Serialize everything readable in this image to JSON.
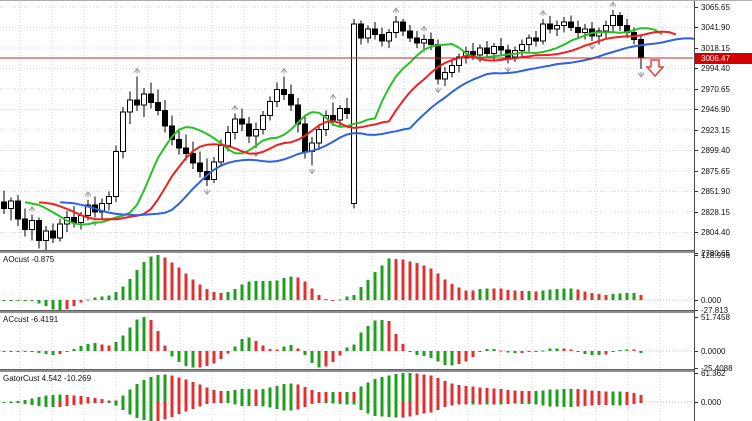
{
  "colors": {
    "background": "#ffffff",
    "grid": "#d6d6d6",
    "candle_up_fill": "#ffffff",
    "candle_down_fill": "#000000",
    "candle_stroke": "#000000",
    "alligator_lips_green": "#27c127",
    "alligator_teeth_red": "#ef2020",
    "alligator_jaw_blue": "#2f62e0",
    "histogram_up_green": "#1f9e1f",
    "histogram_down_red": "#e03030",
    "price_line_red": "#d02020",
    "price_badge_red": "#d40000",
    "fractal_gray": "#9a9a9a",
    "sell_arrow_red": "#e04040",
    "separator_gray": "#8e8e8e",
    "axis_line": "#4a4a4a"
  },
  "axis": {
    "price_badge_value": "3006.47"
  },
  "chart_data": [
    {
      "type": "candlestick",
      "name": "price-pane",
      "ylim": [
        2784.1,
        3072.6
      ],
      "y_tick_labels": [
        "3065.65",
        "3041.90",
        "3018.15",
        "2994.40",
        "2970.65",
        "2946.90",
        "2923.15",
        "2899.40",
        "2875.65",
        "2851.90",
        "2828.15",
        "2804.40",
        "2780.65"
      ],
      "price_line": {
        "value": 3006.47,
        "label": "3006.47"
      },
      "x0": 4,
      "dx": 7,
      "ohlc": [
        [
          2840,
          2853,
          2826,
          2832
        ],
        [
          2832,
          2845,
          2818,
          2841
        ],
        [
          2841,
          2848,
          2812,
          2820
        ],
        [
          2820,
          2832,
          2800,
          2808
        ],
        [
          2808,
          2825,
          2795,
          2818
        ],
        [
          2818,
          2822,
          2786,
          2795
        ],
        [
          2795,
          2812,
          2783,
          2806
        ],
        [
          2806,
          2815,
          2792,
          2798
        ],
        [
          2798,
          2820,
          2794,
          2814
        ],
        [
          2814,
          2829,
          2805,
          2822
        ],
        [
          2822,
          2835,
          2810,
          2816
        ],
        [
          2816,
          2828,
          2808,
          2824
        ],
        [
          2824,
          2842,
          2818,
          2836
        ],
        [
          2836,
          2846,
          2822,
          2828
        ],
        [
          2828,
          2844,
          2820,
          2838
        ],
        [
          2838,
          2852,
          2830,
          2846
        ],
        [
          2846,
          2905,
          2840,
          2898
        ],
        [
          2898,
          2950,
          2890,
          2944
        ],
        [
          2944,
          2968,
          2930,
          2958
        ],
        [
          2958,
          2985,
          2945,
          2952
        ],
        [
          2952,
          2972,
          2938,
          2965
        ],
        [
          2965,
          2978,
          2948,
          2955
        ],
        [
          2955,
          2970,
          2940,
          2946
        ],
        [
          2946,
          2958,
          2920,
          2928
        ],
        [
          2928,
          2940,
          2905,
          2912
        ],
        [
          2912,
          2925,
          2895,
          2902
        ],
        [
          2902,
          2918,
          2888,
          2896
        ],
        [
          2896,
          2910,
          2878,
          2885
        ],
        [
          2885,
          2898,
          2868,
          2875
        ],
        [
          2875,
          2890,
          2858,
          2866
        ],
        [
          2866,
          2892,
          2862,
          2886
        ],
        [
          2886,
          2912,
          2880,
          2905
        ],
        [
          2905,
          2928,
          2898,
          2920
        ],
        [
          2920,
          2942,
          2912,
          2936
        ],
        [
          2936,
          2948,
          2922,
          2930
        ],
        [
          2930,
          2938,
          2908,
          2916
        ],
        [
          2916,
          2932,
          2902,
          2924
        ],
        [
          2924,
          2945,
          2918,
          2940
        ],
        [
          2940,
          2962,
          2934,
          2956
        ],
        [
          2956,
          2978,
          2950,
          2970
        ],
        [
          2970,
          2985,
          2958,
          2964
        ],
        [
          2964,
          2976,
          2945,
          2952
        ],
        [
          2952,
          2960,
          2920,
          2930
        ],
        [
          2930,
          2940,
          2890,
          2898
        ],
        [
          2898,
          2915,
          2882,
          2908
        ],
        [
          2908,
          2930,
          2900,
          2924
        ],
        [
          2924,
          2946,
          2916,
          2940
        ],
        [
          2940,
          2955,
          2928,
          2935
        ],
        [
          2935,
          2952,
          2926,
          2948
        ],
        [
          2948,
          2960,
          2936,
          2942
        ],
        [
          2838,
          3052,
          2832,
          3046
        ],
        [
          3046,
          3050,
          3022,
          3030
        ],
        [
          3030,
          3044,
          3024,
          3040
        ],
        [
          3040,
          3048,
          3028,
          3034
        ],
        [
          3034,
          3042,
          3020,
          3026
        ],
        [
          3026,
          3040,
          3018,
          3036
        ],
        [
          3036,
          3055,
          3030,
          3048
        ],
        [
          3048,
          3052,
          3032,
          3038
        ],
        [
          3038,
          3045,
          3025,
          3030
        ],
        [
          3030,
          3038,
          3018,
          3024
        ],
        [
          3024,
          3034,
          3014,
          3028
        ],
        [
          3028,
          3036,
          3016,
          3022
        ],
        [
          3022,
          3028,
          2976,
          2982
        ],
        [
          2982,
          2996,
          2974,
          2990
        ],
        [
          2990,
          3004,
          2984,
          2998
        ],
        [
          2998,
          3012,
          2990,
          3008
        ],
        [
          3008,
          3020,
          3000,
          3014
        ],
        [
          3014,
          3024,
          3004,
          3010
        ],
        [
          3010,
          3022,
          3002,
          3018
        ],
        [
          3018,
          3026,
          3006,
          3012
        ],
        [
          3012,
          3024,
          3004,
          3020
        ],
        [
          3020,
          3030,
          3010,
          3016
        ],
        [
          3016,
          3022,
          3000,
          3008
        ],
        [
          3008,
          3020,
          3002,
          3015
        ],
        [
          3015,
          3028,
          3008,
          3022
        ],
        [
          3022,
          3034,
          3014,
          3030
        ],
        [
          3030,
          3038,
          3020,
          3026
        ],
        [
          3026,
          3052,
          3022,
          3046
        ],
        [
          3046,
          3055,
          3035,
          3040
        ],
        [
          3040,
          3050,
          3032,
          3044
        ],
        [
          3044,
          3054,
          3036,
          3048
        ],
        [
          3048,
          3056,
          3038,
          3042
        ],
        [
          3042,
          3050,
          3030,
          3036
        ],
        [
          3036,
          3046,
          3028,
          3040
        ],
        [
          3040,
          3048,
          3026,
          3032
        ],
        [
          3032,
          3042,
          3022,
          3038
        ],
        [
          3038,
          3050,
          3030,
          3044
        ],
        [
          3044,
          3062,
          3036,
          3056
        ],
        [
          3056,
          3060,
          3038,
          3044
        ],
        [
          3044,
          3052,
          3030,
          3036
        ],
        [
          3036,
          3042,
          3022,
          3028
        ],
        [
          3028,
          3034,
          2994,
          3006.47
        ]
      ],
      "overlays": [
        {
          "name": "alligator-lips",
          "method": "smma_median",
          "period": 5,
          "shift": 3,
          "color_key": "alligator_lips_green"
        },
        {
          "name": "alligator-teeth",
          "method": "smma_median",
          "period": 8,
          "shift": 5,
          "color_key": "alligator_teeth_red"
        },
        {
          "name": "alligator-jaw",
          "method": "smma_median",
          "period": 13,
          "shift": 8,
          "color_key": "alligator_jaw_blue"
        }
      ],
      "fractals_up": [
        4,
        12,
        19,
        33,
        40,
        47,
        56,
        60,
        77,
        87
      ],
      "fractals_down": [
        5,
        13,
        29,
        36,
        44,
        62,
        72,
        84,
        91
      ],
      "sell_marker": {
        "x_index": 93,
        "price": 2995
      }
    },
    {
      "type": "bar",
      "name": "awesome-oscillator-pane",
      "label": "AOcust -0.875",
      "derived_from": "ohlc",
      "formula": "AO = SMA(median,5) - SMA(median,34)",
      "ylim": [
        -28,
        135
      ],
      "pos_max": 128.956,
      "neg_min": -27.813,
      "ticks": [
        "128.956",
        "0.000",
        "-27.813"
      ]
    },
    {
      "type": "bar",
      "name": "accelerator-oscillator-pane",
      "label": "ACcust -6.4191",
      "derived_from": "ohlc",
      "formula": "AC = AO - SMA(AO,5)",
      "ylim": [
        -27.5,
        58
      ],
      "pos_max": 51.7458,
      "neg_min": -25.4088,
      "ticks": [
        "51.7458",
        "0.0000",
        "-25.4088"
      ]
    },
    {
      "type": "bar",
      "name": "gator-oscillator-pane",
      "label": "GatorCust 4.542 -10.269",
      "derived_from": "ohlc",
      "formula": "Gator upper = |jaw-teeth|, lower = -|teeth-lips|",
      "ylim": [
        -40,
        63
      ],
      "pos_max": 61.362,
      "neg_min": -40,
      "ticks": [
        "61.362",
        "0.000"
      ]
    }
  ]
}
